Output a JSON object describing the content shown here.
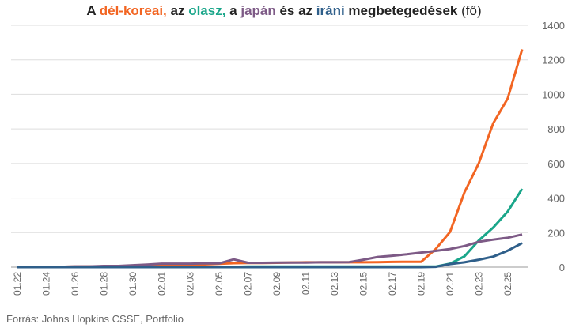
{
  "title": {
    "parts": [
      {
        "text": "A ",
        "color": "#222222",
        "weight": "bold"
      },
      {
        "text": "dél-koreai,",
        "color": "#f26522",
        "weight": "bold"
      },
      {
        "text": " az ",
        "color": "#222222",
        "weight": "bold"
      },
      {
        "text": "olasz,",
        "color": "#1aa68a",
        "weight": "bold"
      },
      {
        "text": " a ",
        "color": "#222222",
        "weight": "bold"
      },
      {
        "text": "japán",
        "color": "#7d5a86",
        "weight": "bold"
      },
      {
        "text": " és az ",
        "color": "#222222",
        "weight": "bold"
      },
      {
        "text": "iráni",
        "color": "#2f5f8a",
        "weight": "bold"
      },
      {
        "text": " megbetegedések",
        "color": "#222222",
        "weight": "bold"
      },
      {
        "text": " (fő)",
        "color": "#222222",
        "weight": "normal"
      }
    ]
  },
  "source": "Forrás: Johns Hopkins CSSE, Portfolio",
  "chart_data": {
    "type": "line",
    "title": "A dél-koreai, az olasz, a japán és az iráni megbetegedések (fő)",
    "xlabel": "",
    "ylabel": "",
    "ylim": [
      0,
      1400
    ],
    "yticks": [
      0,
      200,
      400,
      600,
      800,
      1000,
      1200,
      1400
    ],
    "grid": true,
    "legend": "none",
    "categories": [
      "01.22",
      "01.23",
      "01.24",
      "01.25",
      "01.26",
      "01.27",
      "01.28",
      "01.29",
      "01.30",
      "01.31",
      "02.01",
      "02.02",
      "02.03",
      "02.04",
      "02.05",
      "02.06",
      "02.07",
      "02.08",
      "02.09",
      "02.10",
      "02.11",
      "02.12",
      "02.13",
      "02.14",
      "02.15",
      "02.16",
      "02.17",
      "02.18",
      "02.19",
      "02.20",
      "02.21",
      "02.22",
      "02.23",
      "02.24",
      "02.25",
      "02.26"
    ],
    "tick_labels": [
      "01.22",
      "01.24",
      "01.26",
      "01.28",
      "01.30",
      "02.01",
      "02.03",
      "02.05",
      "02.07",
      "02.09",
      "02.11",
      "02.13",
      "02.15",
      "02.17",
      "02.19",
      "02.21",
      "02.23",
      "02.25"
    ],
    "series": [
      {
        "color": "#f26522",
        "values": [
          1,
          1,
          2,
          2,
          3,
          4,
          4,
          4,
          4,
          11,
          12,
          15,
          15,
          16,
          19,
          23,
          24,
          24,
          25,
          27,
          28,
          28,
          28,
          28,
          28,
          29,
          30,
          31,
          31,
          104,
          204,
          433,
          602,
          833,
          977,
          1261
        ]
      },
      {
        "color": "#1aa68a",
        "values": [
          0,
          0,
          0,
          0,
          0,
          0,
          0,
          0,
          0,
          2,
          2,
          2,
          2,
          2,
          2,
          2,
          3,
          3,
          3,
          3,
          3,
          3,
          3,
          3,
          3,
          3,
          3,
          3,
          3,
          3,
          20,
          62,
          155,
          229,
          322,
          453
        ]
      },
      {
        "color": "#7d5a86",
        "values": [
          2,
          2,
          2,
          2,
          4,
          4,
          7,
          7,
          11,
          15,
          20,
          20,
          20,
          22,
          22,
          45,
          25,
          25,
          26,
          26,
          26,
          28,
          28,
          29,
          43,
          59,
          66,
          74,
          84,
          94,
          105,
          122,
          147,
          159,
          170,
          189
        ]
      },
      {
        "color": "#2f5f8a",
        "values": [
          0,
          0,
          0,
          0,
          0,
          0,
          0,
          0,
          0,
          0,
          0,
          0,
          0,
          0,
          0,
          0,
          0,
          0,
          0,
          0,
          0,
          0,
          0,
          0,
          0,
          0,
          0,
          0,
          0,
          2,
          18,
          28,
          43,
          61,
          95,
          139
        ]
      }
    ]
  }
}
